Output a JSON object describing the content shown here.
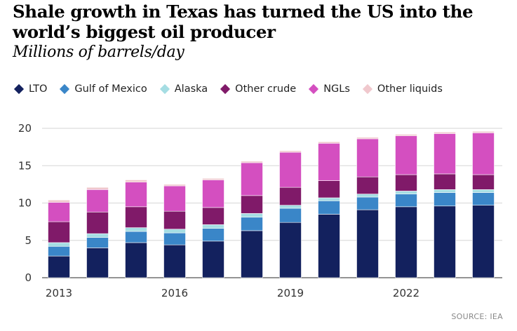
{
  "title": "Shale growth in Texas has turned the US into the world’s biggest oil producer",
  "subtitle": "Millions of barrels/day",
  "source": "SOURCE: IEA",
  "colors": {
    "LTO": "#13215e",
    "Gulf of Mexico": "#3a86c8",
    "Alaska": "#a5dde3",
    "Other crude": "#801a69",
    "NGLs": "#d44fc0",
    "Other liquids": "#f0c8cd"
  },
  "chart_data": {
    "type": "bar",
    "stacked": true,
    "categories": [
      "2013",
      "2014",
      "2015",
      "2016",
      "2017",
      "2018",
      "2019",
      "2020",
      "2021",
      "2022",
      "2023",
      "2024"
    ],
    "x_tick_labels": [
      "2013",
      "2016",
      "2019",
      "2022"
    ],
    "y_ticks": [
      0,
      5,
      10,
      15,
      20
    ],
    "ylim": [
      0,
      20
    ],
    "grid": true,
    "legend_position": "top",
    "series": [
      {
        "name": "LTO",
        "values": [
          2.9,
          4.0,
          4.7,
          4.4,
          4.9,
          6.3,
          7.4,
          8.5,
          9.1,
          9.5,
          9.6,
          9.7
        ]
      },
      {
        "name": "Gulf of Mexico",
        "values": [
          1.3,
          1.4,
          1.5,
          1.6,
          1.7,
          1.8,
          1.9,
          1.8,
          1.7,
          1.7,
          1.8,
          1.7
        ]
      },
      {
        "name": "Alaska",
        "values": [
          0.5,
          0.5,
          0.5,
          0.5,
          0.5,
          0.5,
          0.4,
          0.4,
          0.4,
          0.4,
          0.4,
          0.4
        ]
      },
      {
        "name": "Other crude",
        "values": [
          2.8,
          2.9,
          2.8,
          2.4,
          2.3,
          2.4,
          2.4,
          2.3,
          2.3,
          2.2,
          2.1,
          2.0
        ]
      },
      {
        "name": "NGLs",
        "values": [
          2.6,
          3.0,
          3.3,
          3.4,
          3.7,
          4.4,
          4.7,
          5.0,
          5.1,
          5.2,
          5.4,
          5.6
        ]
      },
      {
        "name": "Other liquids",
        "values": [
          0.3,
          0.3,
          0.3,
          0.2,
          0.2,
          0.2,
          0.2,
          0.2,
          0.2,
          0.2,
          0.2,
          0.2
        ]
      }
    ]
  }
}
